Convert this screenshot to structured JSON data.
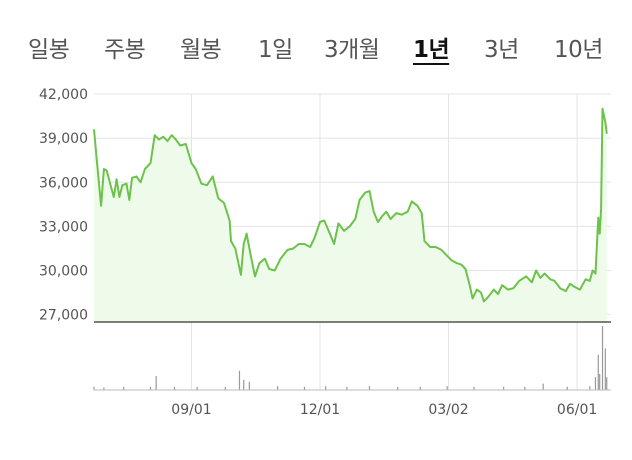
{
  "tabs": [
    {
      "label": "일봉",
      "active": false
    },
    {
      "label": "주봉",
      "active": false
    },
    {
      "label": "월봉",
      "active": false
    },
    {
      "label": "1일",
      "active": false
    },
    {
      "label": "3개월",
      "active": false
    },
    {
      "label": "1년",
      "active": true
    },
    {
      "label": "3년",
      "active": false
    },
    {
      "label": "10년",
      "active": false
    }
  ],
  "colors": {
    "line": "#6cc24a",
    "area": "#eefbea",
    "grid": "#e4e4e4",
    "axis": "#333333",
    "volume": "#999999",
    "text": "#555555"
  },
  "chart_data": {
    "type": "area",
    "title": "",
    "xlabel": "",
    "ylabel": "",
    "ylim": [
      26500,
      42000
    ],
    "y_ticks": [
      42000,
      39000,
      36000,
      33000,
      30000,
      27000
    ],
    "y_tick_labels": [
      "42,000",
      "39,000",
      "36,000",
      "33,000",
      "30,000",
      "27,000"
    ],
    "x_range": [
      "2020-06-24",
      "2021-06-25"
    ],
    "x_ticks": [
      {
        "date": "2020-09-01",
        "label": "09/01"
      },
      {
        "date": "2020-12-01",
        "label": "12/01"
      },
      {
        "date": "2021-03-02",
        "label": "03/02"
      },
      {
        "date": "2021-06-01",
        "label": "06/01"
      }
    ],
    "grid": true,
    "price_series": [
      [
        "2020-06-24",
        39600
      ],
      [
        "2020-06-26",
        37500
      ],
      [
        "2020-06-29",
        34400
      ],
      [
        "2020-07-01",
        36900
      ],
      [
        "2020-07-03",
        36800
      ],
      [
        "2020-07-06",
        35700
      ],
      [
        "2020-07-08",
        35000
      ],
      [
        "2020-07-10",
        36200
      ],
      [
        "2020-07-12",
        35000
      ],
      [
        "2020-07-14",
        35800
      ],
      [
        "2020-07-17",
        35900
      ],
      [
        "2020-07-19",
        34800
      ],
      [
        "2020-07-21",
        36300
      ],
      [
        "2020-07-24",
        36400
      ],
      [
        "2020-07-27",
        36000
      ],
      [
        "2020-07-30",
        36900
      ],
      [
        "2020-08-03",
        37300
      ],
      [
        "2020-08-06",
        39200
      ],
      [
        "2020-08-09",
        38900
      ],
      [
        "2020-08-12",
        39100
      ],
      [
        "2020-08-15",
        38800
      ],
      [
        "2020-08-18",
        39200
      ],
      [
        "2020-08-21",
        38900
      ],
      [
        "2020-08-24",
        38500
      ],
      [
        "2020-08-28",
        38600
      ],
      [
        "2020-09-01",
        37300
      ],
      [
        "2020-09-04",
        36900
      ],
      [
        "2020-09-08",
        35900
      ],
      [
        "2020-09-12",
        35800
      ],
      [
        "2020-09-16",
        36400
      ],
      [
        "2020-09-20",
        34900
      ],
      [
        "2020-09-24",
        34600
      ],
      [
        "2020-09-26",
        34000
      ],
      [
        "2020-09-28",
        33400
      ],
      [
        "2020-09-29",
        32000
      ],
      [
        "2020-10-02",
        31500
      ],
      [
        "2020-10-04",
        30600
      ],
      [
        "2020-10-06",
        29700
      ],
      [
        "2020-10-08",
        31800
      ],
      [
        "2020-10-10",
        32500
      ],
      [
        "2020-10-13",
        31000
      ],
      [
        "2020-10-16",
        29600
      ],
      [
        "2020-10-19",
        30500
      ],
      [
        "2020-10-23",
        30800
      ],
      [
        "2020-10-26",
        30100
      ],
      [
        "2020-10-30",
        30000
      ],
      [
        "2020-11-03",
        30800
      ],
      [
        "2020-11-08",
        31400
      ],
      [
        "2020-11-12",
        31500
      ],
      [
        "2020-11-16",
        31800
      ],
      [
        "2020-11-20",
        31800
      ],
      [
        "2020-11-24",
        31600
      ],
      [
        "2020-11-27",
        32200
      ],
      [
        "2020-12-01",
        33300
      ],
      [
        "2020-12-04",
        33400
      ],
      [
        "2020-12-08",
        32500
      ],
      [
        "2020-12-11",
        31800
      ],
      [
        "2020-12-14",
        33200
      ],
      [
        "2020-12-18",
        32700
      ],
      [
        "2020-12-22",
        33000
      ],
      [
        "2020-12-26",
        33500
      ],
      [
        "2020-12-29",
        34800
      ],
      [
        "2021-01-02",
        35300
      ],
      [
        "2021-01-05",
        35400
      ],
      [
        "2021-01-08",
        34000
      ],
      [
        "2021-01-11",
        33300
      ],
      [
        "2021-01-14",
        33700
      ],
      [
        "2021-01-17",
        34000
      ],
      [
        "2021-01-20",
        33500
      ],
      [
        "2021-01-24",
        33900
      ],
      [
        "2021-01-28",
        33800
      ],
      [
        "2021-02-01",
        34000
      ],
      [
        "2021-02-04",
        34700
      ],
      [
        "2021-02-08",
        34400
      ],
      [
        "2021-02-11",
        33900
      ],
      [
        "2021-02-13",
        32000
      ],
      [
        "2021-02-17",
        31600
      ],
      [
        "2021-02-21",
        31600
      ],
      [
        "2021-02-25",
        31400
      ],
      [
        "2021-02-28",
        31100
      ],
      [
        "2021-03-04",
        30700
      ],
      [
        "2021-03-08",
        30500
      ],
      [
        "2021-03-11",
        30400
      ],
      [
        "2021-03-14",
        30100
      ],
      [
        "2021-03-17",
        29000
      ],
      [
        "2021-03-19",
        28100
      ],
      [
        "2021-03-22",
        28700
      ],
      [
        "2021-03-25",
        28500
      ],
      [
        "2021-03-27",
        27900
      ],
      [
        "2021-03-30",
        28200
      ],
      [
        "2021-04-03",
        28700
      ],
      [
        "2021-04-06",
        28400
      ],
      [
        "2021-04-09",
        29000
      ],
      [
        "2021-04-13",
        28700
      ],
      [
        "2021-04-17",
        28800
      ],
      [
        "2021-04-21",
        29300
      ],
      [
        "2021-04-26",
        29600
      ],
      [
        "2021-04-30",
        29200
      ],
      [
        "2021-05-03",
        30000
      ],
      [
        "2021-05-06",
        29500
      ],
      [
        "2021-05-09",
        29800
      ],
      [
        "2021-05-13",
        29400
      ],
      [
        "2021-05-16",
        29300
      ],
      [
        "2021-05-20",
        28800
      ],
      [
        "2021-05-24",
        28600
      ],
      [
        "2021-05-27",
        29100
      ],
      [
        "2021-05-30",
        28900
      ],
      [
        "2021-06-03",
        28700
      ],
      [
        "2021-06-07",
        29400
      ],
      [
        "2021-06-10",
        29300
      ],
      [
        "2021-06-12",
        30000
      ],
      [
        "2021-06-14",
        29800
      ],
      [
        "2021-06-16",
        33600
      ],
      [
        "2021-06-17",
        32500
      ],
      [
        "2021-06-18",
        34200
      ],
      [
        "2021-06-19",
        41000
      ],
      [
        "2021-06-21",
        40100
      ],
      [
        "2021-06-22",
        39300
      ]
    ],
    "volume_series": [
      [
        "2020-06-24",
        0.05
      ],
      [
        "2020-07-01",
        0.04
      ],
      [
        "2020-07-15",
        0.05
      ],
      [
        "2020-08-03",
        0.05
      ],
      [
        "2020-08-07",
        0.22
      ],
      [
        "2020-08-20",
        0.05
      ],
      [
        "2020-09-05",
        0.05
      ],
      [
        "2020-09-25",
        0.05
      ],
      [
        "2020-10-05",
        0.3
      ],
      [
        "2020-10-08",
        0.16
      ],
      [
        "2020-10-12",
        0.13
      ],
      [
        "2020-11-01",
        0.06
      ],
      [
        "2020-11-20",
        0.05
      ],
      [
        "2020-12-05",
        0.06
      ],
      [
        "2020-12-20",
        0.05
      ],
      [
        "2021-01-05",
        0.06
      ],
      [
        "2021-01-25",
        0.05
      ],
      [
        "2021-02-10",
        0.05
      ],
      [
        "2021-03-01",
        0.06
      ],
      [
        "2021-03-20",
        0.05
      ],
      [
        "2021-04-10",
        0.05
      ],
      [
        "2021-04-25",
        0.05
      ],
      [
        "2021-05-08",
        0.1
      ],
      [
        "2021-05-25",
        0.05
      ],
      [
        "2021-06-10",
        0.06
      ],
      [
        "2021-06-14",
        0.2
      ],
      [
        "2021-06-16",
        0.55
      ],
      [
        "2021-06-17",
        0.25
      ],
      [
        "2021-06-19",
        1.0
      ],
      [
        "2021-06-21",
        0.65
      ],
      [
        "2021-06-22",
        0.2
      ]
    ]
  }
}
